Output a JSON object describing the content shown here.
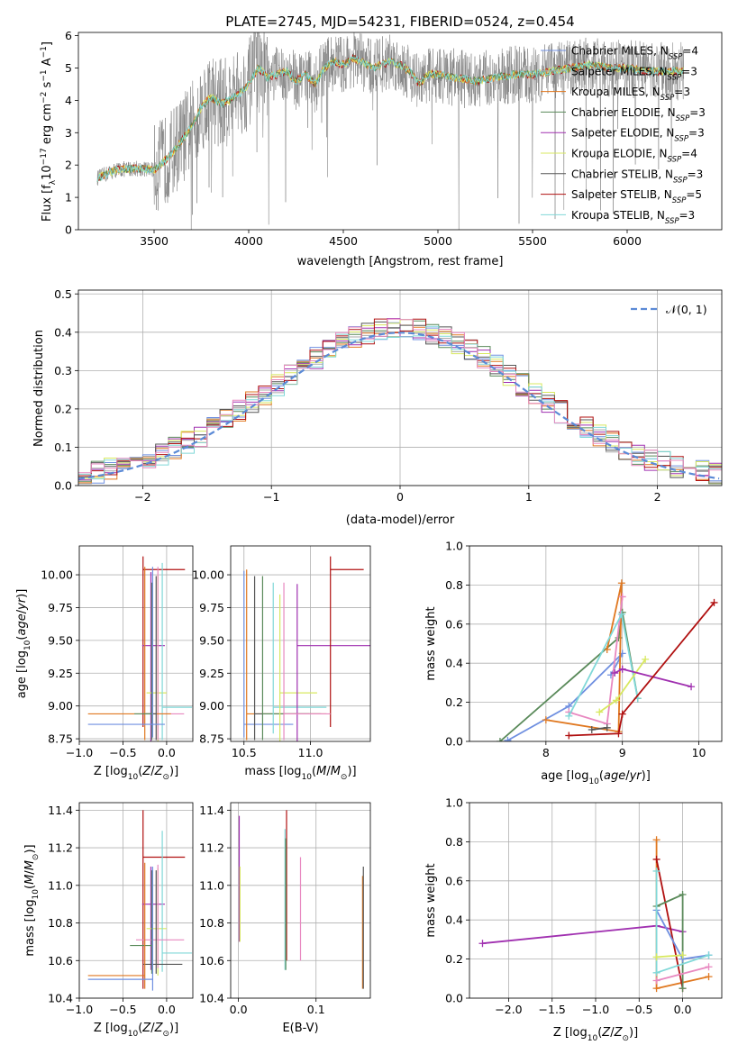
{
  "title": "PLATE=2745, MJD=54231, FIBERID=0524, z=0.454",
  "colors": {
    "chabrier_miles": "#6f8fe0",
    "salpeter_miles": "#a9a9a9",
    "kroupa_miles": "#e07820",
    "chabrier_elodie": "#5a8a5a",
    "salpeter_elodie": "#a030b0",
    "kroupa_elodie": "#d8e860",
    "chabrier_stelib": "#555555",
    "salpeter_stelib": "#b01010",
    "kroupa_stelib": "#80d8d8",
    "pink": "#e888c0",
    "data": "#808080",
    "gauss": "#5b8ad6"
  },
  "legend1": [
    {
      "label": "Chabrier MILES, N",
      "sub": "SSP",
      "suffix": "=4",
      "color": "#6f8fe0"
    },
    {
      "label": "Salpeter MILES, N",
      "sub": "SSP",
      "suffix": "=3",
      "color": "#a9a9a9"
    },
    {
      "label": "Kroupa MILES, N",
      "sub": "SSP",
      "suffix": "=3",
      "color": "#e07820"
    },
    {
      "label": "Chabrier ELODIE, N",
      "sub": "SSP",
      "suffix": "=3",
      "color": "#5a8a5a"
    },
    {
      "label": "Salpeter ELODIE, N",
      "sub": "SSP",
      "suffix": "=3",
      "color": "#a030b0"
    },
    {
      "label": "Kroupa ELODIE, N",
      "sub": "SSP",
      "suffix": "=4",
      "color": "#d8e860"
    },
    {
      "label": "Chabrier STELIB, N",
      "sub": "SSP",
      "suffix": "=3",
      "color": "#555555"
    },
    {
      "label": "Salpeter STELIB, N",
      "sub": "SSP",
      "suffix": "=5",
      "color": "#b01010"
    },
    {
      "label": "Kroupa STELIB, N",
      "sub": "SSP",
      "suffix": "=3",
      "color": "#80d8d8"
    }
  ],
  "legend2_label": "𝒩(0, 1)",
  "chart_data": [
    {
      "type": "line",
      "panel": "spectrum",
      "xlabel": "wavelength [Angstrom, rest frame]",
      "ylabel": "Flux [f_λ 10^-17 erg cm^-2 s^-1 A^-1]",
      "xlim": [
        3100,
        6500
      ],
      "ylim": [
        0,
        6.1
      ],
      "xticks": [
        3500,
        4000,
        4500,
        5000,
        5500,
        6000
      ],
      "yticks": [
        0,
        1,
        2,
        3,
        4,
        5,
        6
      ],
      "grid": false,
      "legend": "top-right",
      "model_x": [
        3200,
        3300,
        3400,
        3500,
        3550,
        3600,
        3650,
        3700,
        3750,
        3800,
        3850,
        3900,
        3950,
        4000,
        4050,
        4100,
        4150,
        4200,
        4250,
        4300,
        4350,
        4400,
        4450,
        4500,
        4550,
        4600,
        4650,
        4700,
        4750,
        4800,
        4850,
        4900,
        4950,
        5000,
        5100,
        5200,
        5300,
        5400,
        5500,
        5600,
        5700,
        5800,
        5900,
        6000,
        6100,
        6200
      ],
      "model_y": [
        1.6,
        1.85,
        1.9,
        1.85,
        2.1,
        2.4,
        2.8,
        3.2,
        3.8,
        4.1,
        3.9,
        4.0,
        4.2,
        4.5,
        5.0,
        4.7,
        4.8,
        4.9,
        4.6,
        4.8,
        4.5,
        5.0,
        5.2,
        5.1,
        5.3,
        5.2,
        5.0,
        5.1,
        5.2,
        5.1,
        4.9,
        4.5,
        4.8,
        4.8,
        4.7,
        4.6,
        4.7,
        4.8,
        4.8,
        4.9,
        5.0,
        5.1,
        5.0,
        5.0,
        4.9,
        4.9
      ]
    },
    {
      "type": "line",
      "panel": "residual-histogram",
      "xlabel": "(data-model)/error",
      "ylabel": "Normed distribution",
      "xlim": [
        -2.5,
        2.5
      ],
      "ylim": [
        0,
        0.51
      ],
      "xticks": [
        -2,
        -1,
        0,
        1,
        2
      ],
      "yticks": [
        0.0,
        0.1,
        0.2,
        0.3,
        0.4,
        0.5
      ],
      "grid": true,
      "legend": "top-right",
      "gauss": {
        "mu": 0,
        "sigma": 1
      }
    },
    {
      "type": "scatter",
      "panel": "age-vs-Z",
      "xlabel": "Z [log10(Z/Z⊙)]",
      "ylabel": "age [log10(age/yr)]",
      "xlim": [
        -1.0,
        0.3
      ],
      "ylim": [
        8.73,
        10.22
      ],
      "xticks": [
        -1.0,
        -0.5,
        0.0
      ],
      "yticks": [
        8.75,
        9.0,
        9.25,
        9.5,
        9.75,
        10.0
      ],
      "grid": true,
      "points": [
        {
          "x": -0.27,
          "y": 10.04,
          "xerr": [
            0.0,
            0.48
          ],
          "yerr": [
            1.2,
            0.1
          ],
          "c": "#b01010"
        },
        {
          "x": -0.18,
          "y": 9.46,
          "xerr": [
            0.1,
            0.16
          ],
          "yerr": [
            0.73,
            0.56
          ],
          "c": "#a030b0"
        },
        {
          "x": -0.1,
          "y": 9.1,
          "xerr": [
            0.13,
            0.1
          ],
          "yerr": [
            0.4,
            0.9
          ],
          "c": "#d8e860"
        },
        {
          "x": -0.05,
          "y": 8.99,
          "xerr": [
            0.0,
            0.34
          ],
          "yerr": [
            0.25,
            1.1
          ],
          "c": "#80d8d8"
        },
        {
          "x": -0.1,
          "y": 8.94,
          "xerr": [
            0.2,
            0.3
          ],
          "yerr": [
            0.2,
            1.12
          ],
          "c": "#e888c0"
        },
        {
          "x": -0.25,
          "y": 8.94,
          "xerr": [
            0.65,
            0.3
          ],
          "yerr": [
            0.2,
            1.12
          ],
          "c": "#e07820"
        },
        {
          "x": -0.12,
          "y": 8.94,
          "xerr": [
            0.12,
            0.0
          ],
          "yerr": [
            0.2,
            1.05
          ],
          "c": "#555555"
        },
        {
          "x": -0.17,
          "y": 8.94,
          "xerr": [
            0.2,
            0.0
          ],
          "yerr": [
            0.2,
            1.0
          ],
          "c": "#5a8a5a"
        },
        {
          "x": -0.16,
          "y": 8.86,
          "xerr": [
            0.74,
            0.14
          ],
          "yerr": [
            0.1,
            1.2
          ],
          "c": "#6f8fe0"
        }
      ]
    },
    {
      "type": "scatter",
      "panel": "age-vs-mass",
      "xlabel": "mass [log10(M/M⊙)]",
      "ylabel": "",
      "xlim": [
        10.4,
        11.45
      ],
      "ylim": [
        8.73,
        10.22
      ],
      "xticks": [
        10.5,
        11.0
      ],
      "yticks": [
        8.75,
        9.0,
        9.25,
        9.5,
        9.75,
        10.0
      ],
      "grid": true,
      "points": [
        {
          "x": 10.5,
          "y": 8.86,
          "xerr": [
            0.0,
            0.37
          ],
          "yerr": [
            0.1,
            1.17
          ],
          "c": "#6f8fe0"
        },
        {
          "x": 10.52,
          "y": 8.94,
          "xerr": [
            0.0,
            0.6
          ],
          "yerr": [
            0.2,
            1.1
          ],
          "c": "#e07820"
        },
        {
          "x": 10.58,
          "y": 8.94,
          "xerr": [
            0.0,
            0.5
          ],
          "yerr": [
            0.2,
            1.05
          ],
          "c": "#555555"
        },
        {
          "x": 10.64,
          "y": 8.94,
          "xerr": [
            0.0,
            0.35
          ],
          "yerr": [
            0.2,
            1.05
          ],
          "c": "#5a8a5a"
        },
        {
          "x": 10.72,
          "y": 8.99,
          "xerr": [
            0.0,
            0.4
          ],
          "yerr": [
            0.2,
            0.95
          ],
          "c": "#80d8d8"
        },
        {
          "x": 10.77,
          "y": 9.1,
          "xerr": [
            0.0,
            0.28
          ],
          "yerr": [
            0.4,
            0.75
          ],
          "c": "#d8e860"
        },
        {
          "x": 10.9,
          "y": 9.46,
          "xerr": [
            0.0,
            0.55
          ],
          "yerr": [
            0.73,
            0.47
          ],
          "c": "#a030b0"
        },
        {
          "x": 11.15,
          "y": 10.04,
          "xerr": [
            0.0,
            0.25
          ],
          "yerr": [
            1.2,
            0.1
          ],
          "c": "#b01010"
        },
        {
          "x": 10.8,
          "y": 8.94,
          "xerr": [
            0.0,
            0.35
          ],
          "yerr": [
            0.2,
            1.0
          ],
          "c": "#e888c0"
        }
      ]
    },
    {
      "type": "line",
      "panel": "weight-vs-age",
      "xlabel": "age [log10(age/yr)]",
      "ylabel": "mass weight",
      "xlim": [
        7.0,
        10.3
      ],
      "ylim": [
        0,
        1.0
      ],
      "xticks": [
        8,
        9,
        10
      ],
      "yticks": [
        0.0,
        0.2,
        0.4,
        0.6,
        0.8,
        1.0
      ],
      "grid": true,
      "series": [
        {
          "c": "#6f8fe0",
          "x": [
            7.5,
            8.3,
            9.0,
            8.85
          ],
          "y": [
            0.005,
            0.18,
            0.45,
            0.34
          ]
        },
        {
          "c": "#5a8a5a",
          "x": [
            7.4,
            8.95,
            9.0,
            9.2
          ],
          "y": [
            0.0,
            0.53,
            0.66,
            0.22
          ]
        },
        {
          "c": "#e07820",
          "x": [
            8.0,
            8.95,
            8.99,
            8.8
          ],
          "y": [
            0.11,
            0.05,
            0.81,
            0.47
          ]
        },
        {
          "c": "#e888c0",
          "x": [
            8.3,
            8.8,
            9.0
          ],
          "y": [
            0.15,
            0.09,
            0.74
          ]
        },
        {
          "c": "#80d8d8",
          "x": [
            8.3,
            8.99,
            9.2
          ],
          "y": [
            0.13,
            0.65,
            0.22
          ]
        },
        {
          "c": "#d8e860",
          "x": [
            8.7,
            8.92,
            9.3
          ],
          "y": [
            0.15,
            0.21,
            0.42
          ]
        },
        {
          "c": "#a030b0",
          "x": [
            8.9,
            9.0,
            9.9
          ],
          "y": [
            0.35,
            0.37,
            0.28
          ]
        },
        {
          "c": "#b01010",
          "x": [
            8.3,
            8.95,
            9.0,
            10.2
          ],
          "y": [
            0.03,
            0.04,
            0.14,
            0.71
          ]
        },
        {
          "c": "#555555",
          "x": [
            8.6,
            8.8
          ],
          "y": [
            0.06,
            0.07
          ]
        }
      ]
    },
    {
      "type": "scatter",
      "panel": "mass-vs-Z",
      "xlabel": "Z [log10(Z/Z⊙)]",
      "ylabel": "mass [log10(M/M⊙)]",
      "xlim": [
        -1.0,
        0.3
      ],
      "ylim": [
        10.4,
        11.44
      ],
      "xticks": [
        -1.0,
        -0.5,
        0.0
      ],
      "yticks": [
        10.4,
        10.6,
        10.8,
        11.0,
        11.2,
        11.4
      ],
      "grid": true,
      "points": [
        {
          "x": -0.27,
          "y": 11.15,
          "xerr": [
            0.0,
            0.48
          ],
          "yerr": [
            0.7,
            0.25
          ],
          "c": "#b01010"
        },
        {
          "x": -0.18,
          "y": 10.9,
          "xerr": [
            0.1,
            0.16
          ],
          "yerr": [
            0.35,
            0.2
          ],
          "c": "#a030b0"
        },
        {
          "x": -0.1,
          "y": 10.77,
          "xerr": [
            0.13,
            0.1
          ],
          "yerr": [
            0.25,
            0.32
          ],
          "c": "#d8e860"
        },
        {
          "x": -0.05,
          "y": 10.64,
          "xerr": [
            0.0,
            0.34
          ],
          "yerr": [
            0.1,
            0.65
          ],
          "c": "#80d8d8"
        },
        {
          "x": -0.1,
          "y": 10.71,
          "xerr": [
            0.25,
            0.3
          ],
          "yerr": [
            0.15,
            0.4
          ],
          "c": "#e888c0"
        },
        {
          "x": -0.17,
          "y": 10.68,
          "xerr": [
            0.25,
            0.0
          ],
          "yerr": [
            0.15,
            0.4
          ],
          "c": "#5a8a5a"
        },
        {
          "x": -0.12,
          "y": 10.58,
          "xerr": [
            0.15,
            0.3
          ],
          "yerr": [
            0.05,
            0.5
          ],
          "c": "#555555"
        },
        {
          "x": -0.25,
          "y": 10.52,
          "xerr": [
            0.65,
            0.0
          ],
          "yerr": [
            0.07,
            0.6
          ],
          "c": "#e07820"
        },
        {
          "x": -0.16,
          "y": 10.5,
          "xerr": [
            0.74,
            0.0
          ],
          "yerr": [
            0.06,
            0.6
          ],
          "c": "#6f8fe0"
        }
      ]
    },
    {
      "type": "scatter",
      "panel": "mass-vs-EBV",
      "xlabel": "E(B-V)",
      "ylabel": "",
      "xlim": [
        -0.01,
        0.17
      ],
      "ylim": [
        10.4,
        11.44
      ],
      "xticks": [
        0.0,
        0.1
      ],
      "yticks": [
        10.4,
        10.6,
        10.8,
        11.0,
        11.2,
        11.4
      ],
      "grid": true,
      "points": [
        {
          "x": 0.001,
          "y": 11.0,
          "xerr": [
            0,
            0
          ],
          "yerr": [
            0.3,
            0.37
          ],
          "c": "#a030b0"
        },
        {
          "x": 0.002,
          "y": 10.9,
          "xerr": [
            0,
            0
          ],
          "yerr": [
            0.2,
            0.2
          ],
          "c": "#d8e860"
        },
        {
          "x": 0.06,
          "y": 10.9,
          "xerr": [
            0,
            0
          ],
          "yerr": [
            0.35,
            0.4
          ],
          "c": "#80d8d8"
        },
        {
          "x": 0.062,
          "y": 11.0,
          "xerr": [
            0,
            0
          ],
          "yerr": [
            0.4,
            0.4
          ],
          "c": "#b01010"
        },
        {
          "x": 0.061,
          "y": 10.95,
          "xerr": [
            0,
            0
          ],
          "yerr": [
            0.4,
            0.3
          ],
          "c": "#5a8a5a"
        },
        {
          "x": 0.08,
          "y": 10.9,
          "xerr": [
            0,
            0
          ],
          "yerr": [
            0.3,
            0.25
          ],
          "c": "#e888c0"
        },
        {
          "x": 0.16,
          "y": 10.75,
          "xerr": [
            0,
            0
          ],
          "yerr": [
            0.3,
            0.3
          ],
          "c": "#e07820"
        },
        {
          "x": 0.161,
          "y": 10.8,
          "xerr": [
            0,
            0
          ],
          "yerr": [
            0.35,
            0.3
          ],
          "c": "#555555"
        }
      ]
    },
    {
      "type": "line",
      "panel": "weight-vs-Z",
      "xlabel": "Z [log10(Z/Z⊙)]",
      "ylabel": "mass weight",
      "xlim": [
        -2.45,
        0.45
      ],
      "ylim": [
        0,
        1.0
      ],
      "xticks": [
        -2.0,
        -1.5,
        -1.0,
        -0.5,
        0.0
      ],
      "yticks": [
        0.0,
        0.2,
        0.4,
        0.6,
        0.8,
        1.0
      ],
      "grid": true,
      "series": [
        {
          "c": "#a030b0",
          "x": [
            -2.3,
            -0.3,
            0.0
          ],
          "y": [
            0.28,
            0.37,
            0.34
          ]
        },
        {
          "c": "#e07820",
          "x": [
            -0.3,
            -0.3,
            0.3
          ],
          "y": [
            0.81,
            0.05,
            0.11
          ]
        },
        {
          "c": "#b01010",
          "x": [
            -0.3,
            0.0
          ],
          "y": [
            0.71,
            0.05
          ]
        },
        {
          "c": "#5a8a5a",
          "x": [
            -0.3,
            0.0,
            0.0
          ],
          "y": [
            0.47,
            0.53,
            0.05
          ]
        },
        {
          "c": "#6f8fe0",
          "x": [
            -0.3,
            0.0,
            0.3
          ],
          "y": [
            0.45,
            0.2,
            0.22
          ]
        },
        {
          "c": "#80d8d8",
          "x": [
            -0.3,
            -0.3,
            0.3
          ],
          "y": [
            0.65,
            0.13,
            0.22
          ]
        },
        {
          "c": "#e888c0",
          "x": [
            -0.3,
            0.3
          ],
          "y": [
            0.09,
            0.16
          ]
        },
        {
          "c": "#d8e860",
          "x": [
            -0.3,
            0.0
          ],
          "y": [
            0.21,
            0.22
          ]
        }
      ]
    }
  ]
}
